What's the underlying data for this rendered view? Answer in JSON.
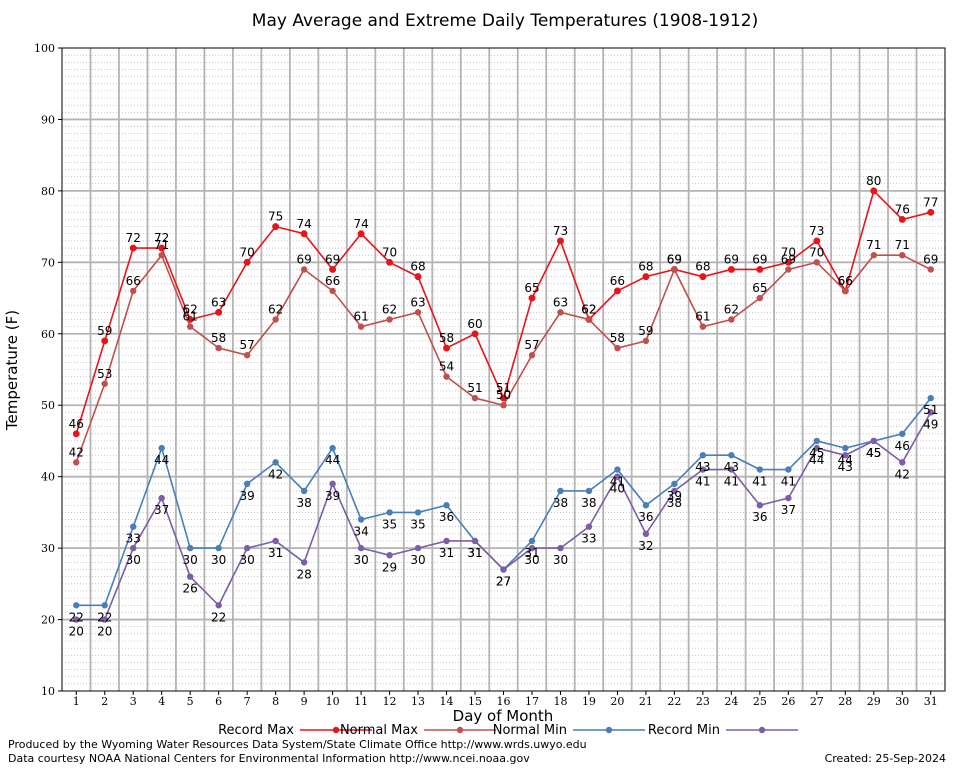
{
  "footer": {
    "credit_line_1": "Produced by the Wyoming Water Resources Data System/State Climate Office http://www.wrds.uwyo.edu",
    "credit_line_2": "Data courtesy NOAA National Centers for Environmental Information http://www.ncei.noaa.gov",
    "created": "Created:  25-Sep-2024"
  },
  "chart_data": {
    "type": "line",
    "title": "May Average and Extreme Daily Temperatures (1908-1912)",
    "xlabel": "Day of Month",
    "ylabel": "Temperature (F)",
    "xlim": [
      1,
      31
    ],
    "ylim": [
      10,
      100
    ],
    "y_ticks": [
      10,
      20,
      30,
      40,
      50,
      60,
      70,
      80,
      90,
      100
    ],
    "x": [
      1,
      2,
      3,
      4,
      5,
      6,
      7,
      8,
      9,
      10,
      11,
      12,
      13,
      14,
      15,
      16,
      17,
      18,
      19,
      20,
      21,
      22,
      23,
      24,
      25,
      26,
      27,
      28,
      29,
      30,
      31
    ],
    "grid": true,
    "legend_placement": "bottom",
    "series": [
      {
        "name": "Record Max",
        "color": "#e8141c",
        "values": [
          46,
          59,
          72,
          72,
          62,
          63,
          70,
          75,
          74,
          69,
          74,
          70,
          68,
          58,
          60,
          51,
          65,
          73,
          62,
          66,
          68,
          69,
          68,
          69,
          69,
          70,
          73,
          66,
          80,
          76,
          77
        ]
      },
      {
        "name": "Normal Max",
        "color": "#c0504d",
        "values": [
          42,
          53,
          66,
          71,
          61,
          58,
          57,
          62,
          69,
          66,
          61,
          62,
          63,
          54,
          51,
          50,
          57,
          63,
          62,
          58,
          59,
          69,
          61,
          62,
          65,
          69,
          70,
          66,
          71,
          71,
          69
        ]
      },
      {
        "name": "Normal Min",
        "color": "#4a7ebb",
        "values": [
          22,
          22,
          33,
          44,
          30,
          30,
          39,
          42,
          38,
          44,
          34,
          35,
          35,
          36,
          31,
          27,
          31,
          38,
          38,
          41,
          36,
          39,
          43,
          43,
          41,
          41,
          45,
          44,
          45,
          46,
          51
        ]
      },
      {
        "name": "Record Min",
        "color": "#7b5ea7",
        "values": [
          20,
          20,
          30,
          37,
          26,
          22,
          30,
          31,
          28,
          39,
          30,
          29,
          30,
          31,
          31,
          27,
          30,
          30,
          33,
          40,
          32,
          38,
          41,
          41,
          36,
          37,
          44,
          43,
          45,
          42,
          49
        ]
      }
    ]
  }
}
